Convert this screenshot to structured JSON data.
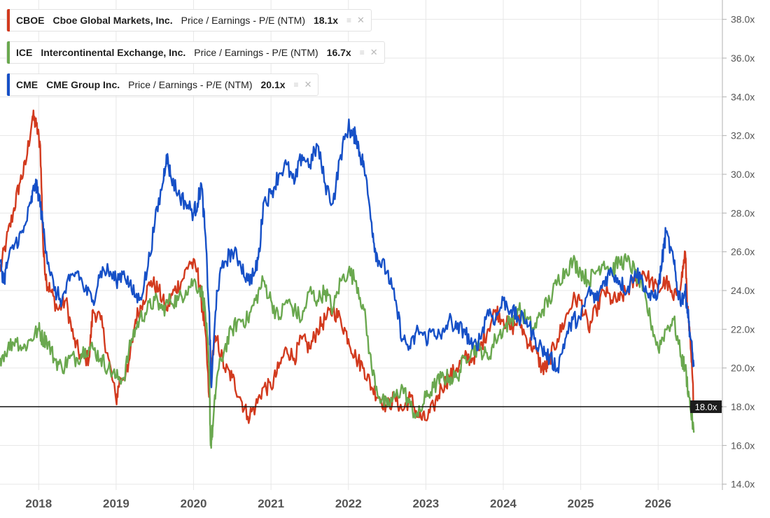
{
  "chart_data": {
    "type": "line",
    "title": "",
    "xlabel": "",
    "ylabel": "",
    "x_ticks": [
      "2018",
      "2019",
      "2020",
      "2021",
      "2022",
      "2023",
      "2024",
      "2025",
      "2026"
    ],
    "y_ticks": [
      "14.0x",
      "16.0x",
      "18.0x",
      "20.0x",
      "22.0x",
      "24.0x",
      "26.0x",
      "28.0x",
      "30.0x",
      "32.0x",
      "34.0x",
      "36.0x",
      "38.0x"
    ],
    "ylim": [
      13.7,
      39.0
    ],
    "xlim": [
      2017.5,
      2026.83
    ],
    "grid": true,
    "legend_position": "top-left",
    "reference_line": {
      "value": 18.0,
      "label": "18.0x"
    },
    "series": [
      {
        "ticker": "CBOE",
        "name": "Cboe Global Markets, Inc.",
        "metric": "Price / Earnings - P/E (NTM)",
        "current_label": "18.1x",
        "color": "#d23a1e",
        "x": [
          2017.5,
          2017.58,
          2017.67,
          2017.75,
          2017.83,
          2017.92,
          2017.97,
          2018.02,
          2018.06,
          2018.1,
          2018.15,
          2018.25,
          2018.35,
          2018.45,
          2018.55,
          2018.65,
          2018.7,
          2018.8,
          2018.9,
          2019.0,
          2019.05,
          2019.15,
          2019.25,
          2019.35,
          2019.45,
          2019.55,
          2019.65,
          2019.75,
          2019.85,
          2019.95,
          2020.05,
          2020.1,
          2020.15,
          2020.2,
          2020.23,
          2020.3,
          2020.4,
          2020.5,
          2020.6,
          2020.7,
          2020.8,
          2020.9,
          2021.0,
          2021.1,
          2021.2,
          2021.3,
          2021.4,
          2021.5,
          2021.6,
          2021.7,
          2021.8,
          2021.9,
          2022.0,
          2022.1,
          2022.2,
          2022.3,
          2022.4,
          2022.5,
          2022.6,
          2022.7,
          2022.8,
          2022.9,
          2023.0,
          2023.1,
          2023.2,
          2023.3,
          2023.4,
          2023.5,
          2023.6,
          2023.7,
          2023.8,
          2023.9,
          2024.0,
          2024.1,
          2024.2,
          2024.3,
          2024.4,
          2024.5,
          2024.55,
          2024.6,
          2024.7,
          2024.8,
          2024.9,
          2025.0,
          2025.1,
          2025.2,
          2025.3,
          2025.4,
          2025.5,
          2025.6,
          2025.7,
          2025.8,
          2025.9,
          2026.0,
          2026.1,
          2026.2,
          2026.3,
          2026.35,
          2026.38,
          2026.42,
          2026.46
        ],
        "y": [
          25.0,
          26.5,
          28.0,
          29.5,
          30.5,
          33.0,
          32.5,
          31.5,
          26.0,
          24.5,
          24.0,
          23.0,
          23.5,
          21.5,
          20.5,
          20.5,
          23.0,
          22.5,
          20.5,
          18.3,
          19.5,
          19.8,
          22.5,
          23.5,
          24.5,
          24.0,
          23.0,
          24.0,
          24.5,
          25.5,
          25.0,
          23.5,
          22.0,
          18.5,
          20.5,
          21.5,
          20.0,
          19.5,
          18.5,
          17.5,
          18.0,
          19.0,
          19.0,
          20.0,
          21.0,
          20.5,
          21.5,
          21.0,
          22.0,
          22.5,
          23.0,
          22.5,
          21.5,
          20.5,
          20.0,
          19.0,
          18.5,
          18.0,
          18.5,
          17.8,
          18.5,
          17.5,
          17.3,
          18.0,
          19.0,
          19.5,
          20.0,
          20.5,
          20.5,
          21.0,
          22.0,
          23.0,
          22.5,
          22.0,
          22.5,
          21.5,
          21.0,
          20.0,
          20.0,
          20.5,
          21.5,
          22.5,
          23.5,
          23.5,
          22.0,
          23.0,
          24.0,
          23.5,
          23.5,
          24.0,
          24.5,
          25.0,
          24.5,
          24.0,
          24.5,
          23.5,
          24.5,
          26.0,
          23.0,
          21.0,
          18.1
        ]
      },
      {
        "ticker": "ICE",
        "name": "Intercontinental Exchange, Inc.",
        "metric": "Price / Earnings - P/E (NTM)",
        "current_label": "16.7x",
        "color": "#6aa84f",
        "x": [
          2017.5,
          2017.6,
          2017.7,
          2017.8,
          2017.9,
          2018.0,
          2018.05,
          2018.1,
          2018.2,
          2018.3,
          2018.4,
          2018.5,
          2018.6,
          2018.7,
          2018.8,
          2018.9,
          2019.0,
          2019.1,
          2019.2,
          2019.3,
          2019.4,
          2019.5,
          2019.6,
          2019.7,
          2019.8,
          2019.9,
          2020.0,
          2020.1,
          2020.15,
          2020.2,
          2020.22,
          2020.25,
          2020.3,
          2020.4,
          2020.5,
          2020.6,
          2020.7,
          2020.8,
          2020.9,
          2021.0,
          2021.1,
          2021.2,
          2021.3,
          2021.4,
          2021.5,
          2021.6,
          2021.7,
          2021.8,
          2021.9,
          2022.0,
          2022.1,
          2022.2,
          2022.3,
          2022.4,
          2022.5,
          2022.6,
          2022.7,
          2022.8,
          2022.9,
          2023.0,
          2023.1,
          2023.2,
          2023.3,
          2023.4,
          2023.5,
          2023.6,
          2023.7,
          2023.8,
          2023.9,
          2024.0,
          2024.1,
          2024.2,
          2024.3,
          2024.4,
          2024.5,
          2024.6,
          2024.7,
          2024.8,
          2024.9,
          2025.0,
          2025.1,
          2025.2,
          2025.3,
          2025.4,
          2025.5,
          2025.6,
          2025.7,
          2025.8,
          2025.9,
          2026.0,
          2026.1,
          2026.2,
          2026.3,
          2026.35,
          2026.4,
          2026.46
        ],
        "y": [
          20.5,
          21.0,
          21.5,
          21.0,
          21.5,
          22.0,
          21.5,
          21.5,
          20.5,
          20.0,
          20.5,
          20.5,
          21.0,
          21.0,
          20.5,
          20.0,
          19.5,
          19.5,
          21.5,
          22.5,
          23.0,
          23.5,
          23.0,
          23.5,
          23.5,
          24.0,
          24.5,
          24.0,
          23.0,
          20.0,
          16.0,
          17.0,
          19.5,
          21.0,
          22.0,
          22.5,
          22.5,
          23.5,
          24.5,
          23.5,
          22.5,
          23.5,
          23.0,
          22.5,
          24.0,
          23.5,
          24.0,
          23.0,
          24.5,
          25.0,
          24.5,
          23.0,
          20.0,
          18.5,
          18.0,
          18.5,
          19.0,
          18.0,
          17.5,
          18.5,
          19.0,
          19.5,
          19.5,
          19.5,
          20.5,
          21.0,
          21.0,
          20.5,
          21.5,
          22.0,
          22.5,
          23.0,
          22.5,
          22.0,
          23.0,
          23.5,
          24.5,
          25.0,
          25.5,
          25.0,
          24.5,
          25.0,
          25.5,
          25.0,
          25.5,
          25.5,
          25.0,
          24.0,
          22.5,
          21.0,
          22.0,
          22.5,
          20.5,
          20.0,
          18.5,
          16.7
        ]
      },
      {
        "ticker": "CME",
        "name": "CME Group Inc.",
        "metric": "Price / Earnings - P/E (NTM)",
        "current_label": "20.1x",
        "color": "#1650c7",
        "x": [
          2017.5,
          2017.55,
          2017.6,
          2017.7,
          2017.8,
          2017.9,
          2017.95,
          2018.0,
          2018.05,
          2018.1,
          2018.2,
          2018.3,
          2018.4,
          2018.5,
          2018.6,
          2018.7,
          2018.8,
          2018.9,
          2019.0,
          2019.1,
          2019.2,
          2019.3,
          2019.4,
          2019.5,
          2019.6,
          2019.65,
          2019.7,
          2019.8,
          2019.9,
          2020.0,
          2020.05,
          2020.1,
          2020.15,
          2020.2,
          2020.23,
          2020.3,
          2020.4,
          2020.5,
          2020.6,
          2020.7,
          2020.8,
          2020.85,
          2020.9,
          2021.0,
          2021.1,
          2021.2,
          2021.3,
          2021.4,
          2021.5,
          2021.6,
          2021.7,
          2021.8,
          2021.9,
          2022.0,
          2022.05,
          2022.1,
          2022.15,
          2022.2,
          2022.3,
          2022.35,
          2022.4,
          2022.5,
          2022.6,
          2022.7,
          2022.8,
          2022.9,
          2023.0,
          2023.1,
          2023.2,
          2023.3,
          2023.4,
          2023.5,
          2023.6,
          2023.7,
          2023.8,
          2023.9,
          2024.0,
          2024.1,
          2024.2,
          2024.3,
          2024.4,
          2024.5,
          2024.6,
          2024.7,
          2024.8,
          2024.9,
          2025.0,
          2025.1,
          2025.2,
          2025.3,
          2025.4,
          2025.5,
          2025.6,
          2025.7,
          2025.8,
          2025.9,
          2026.0,
          2026.05,
          2026.1,
          2026.2,
          2026.25,
          2026.3,
          2026.35,
          2026.38,
          2026.42,
          2026.46
        ],
        "y": [
          25.5,
          24.5,
          25.5,
          26.5,
          27.0,
          28.5,
          29.5,
          29.0,
          27.5,
          26.0,
          24.0,
          23.5,
          24.5,
          25.0,
          24.0,
          23.5,
          25.0,
          25.0,
          24.5,
          25.0,
          24.0,
          23.5,
          25.0,
          27.5,
          29.5,
          31.0,
          30.0,
          29.0,
          28.5,
          28.0,
          28.5,
          29.5,
          27.0,
          23.0,
          19.0,
          24.0,
          25.5,
          26.0,
          25.5,
          24.5,
          25.0,
          26.0,
          28.5,
          29.0,
          30.0,
          30.5,
          29.5,
          31.0,
          30.5,
          31.5,
          29.5,
          28.5,
          31.0,
          32.5,
          32.0,
          32.0,
          31.0,
          30.5,
          27.5,
          26.0,
          25.5,
          25.0,
          23.5,
          21.5,
          21.0,
          22.0,
          21.5,
          22.0,
          21.5,
          22.5,
          22.0,
          22.0,
          21.0,
          21.5,
          23.0,
          22.5,
          23.5,
          23.0,
          22.5,
          22.5,
          21.5,
          21.0,
          20.5,
          20.0,
          21.5,
          22.5,
          22.5,
          24.0,
          23.5,
          24.5,
          25.0,
          24.5,
          24.0,
          25.0,
          24.5,
          23.5,
          24.0,
          25.5,
          27.0,
          25.5,
          24.0,
          23.5,
          24.0,
          23.0,
          21.5,
          20.1
        ]
      }
    ]
  }
}
